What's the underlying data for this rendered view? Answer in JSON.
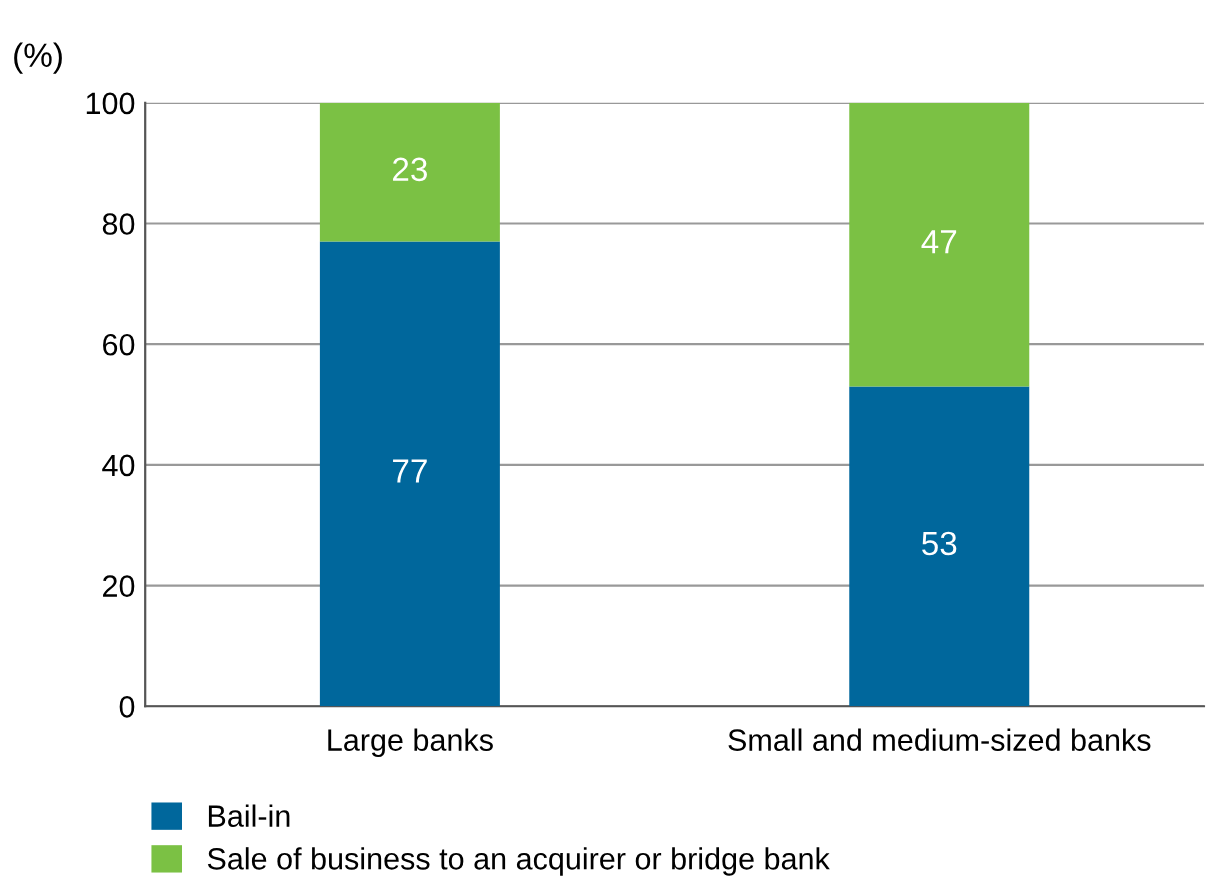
{
  "chart_data": {
    "type": "bar",
    "ylabel": "(%)",
    "categories": [
      "Large banks",
      "Small and medium-sized banks"
    ],
    "series": [
      {
        "name": "Bail-in",
        "color": "#00679c",
        "values": [
          77,
          53
        ]
      },
      {
        "name": "Sale of business to an acquirer or bridge bank",
        "color": "#7bc144",
        "values": [
          23,
          47
        ]
      }
    ],
    "stacked": true,
    "data_labels": true,
    "ylim": [
      0,
      100
    ],
    "yticks": [
      0,
      20,
      40,
      60,
      80,
      100
    ],
    "grid": "y",
    "legend": "bottom left"
  }
}
